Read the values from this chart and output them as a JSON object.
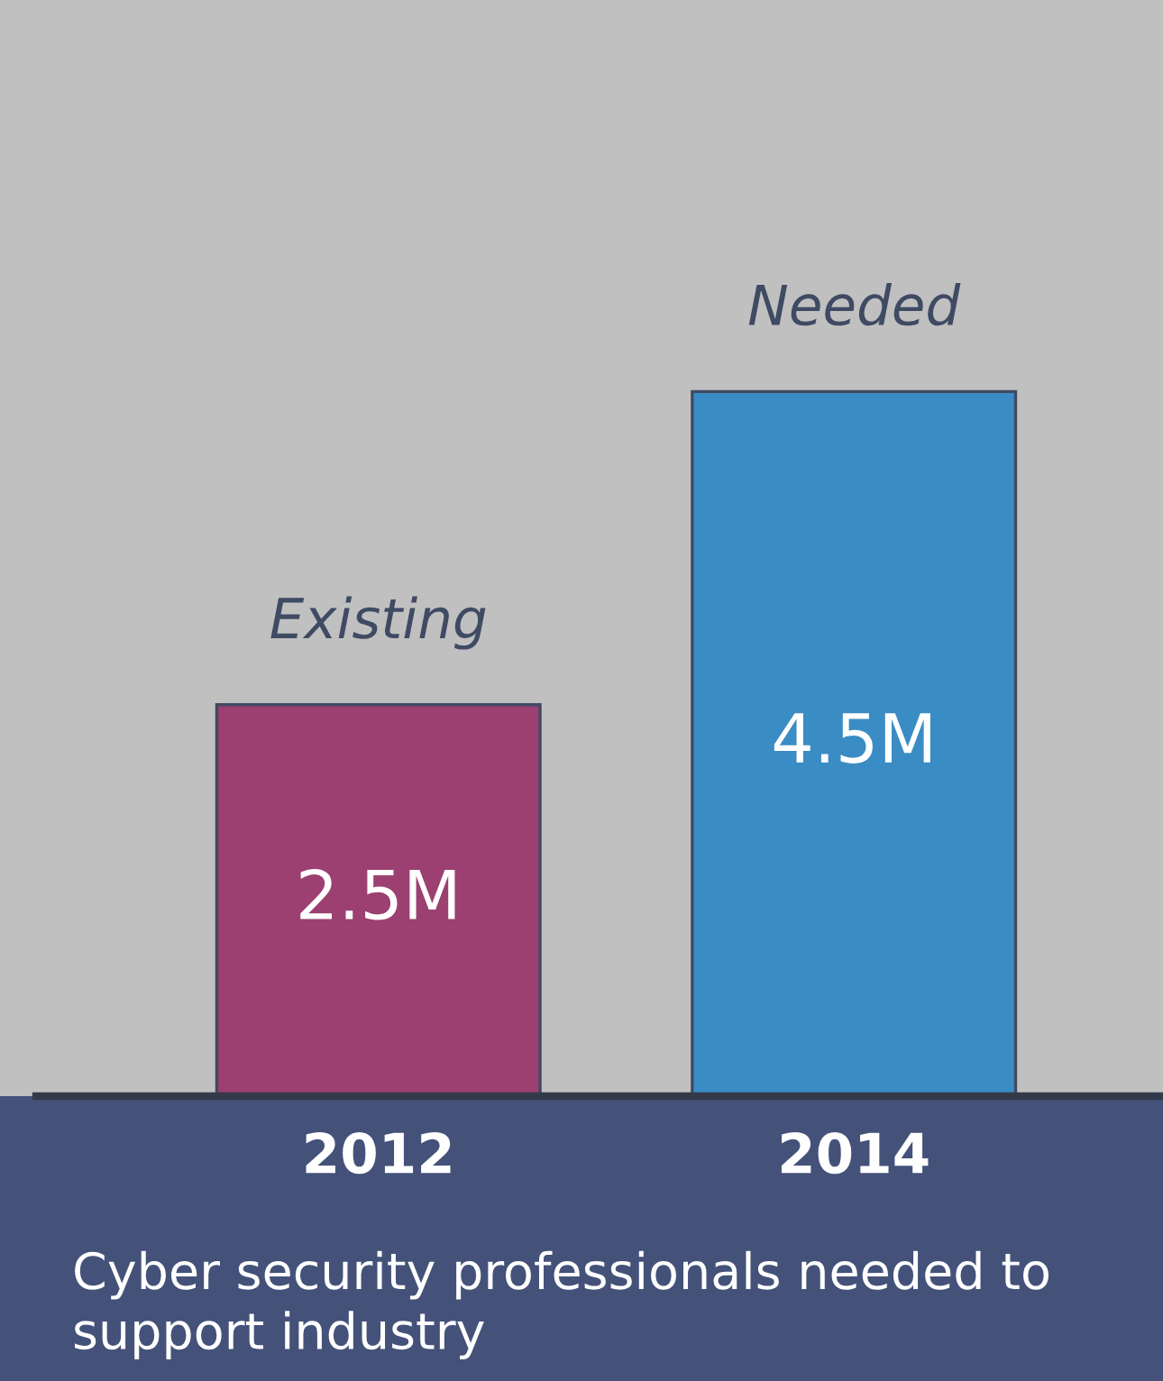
{
  "chart_data": {
    "type": "bar",
    "categories": [
      "2012",
      "2014"
    ],
    "values": [
      2.5,
      4.5
    ],
    "colors": [
      "#9b4070",
      "#3a8cc4"
    ],
    "value_labels": [
      "2.5M",
      "4.5M"
    ],
    "annotations": [
      {
        "text": "Existing",
        "x": "2012",
        "y": 2.5
      },
      {
        "text": "Needed",
        "x": "2014",
        "y": 4.5
      },
      "Cyber security professionals needed to support industry"
    ],
    "grid": false,
    "legend": false
  }
}
